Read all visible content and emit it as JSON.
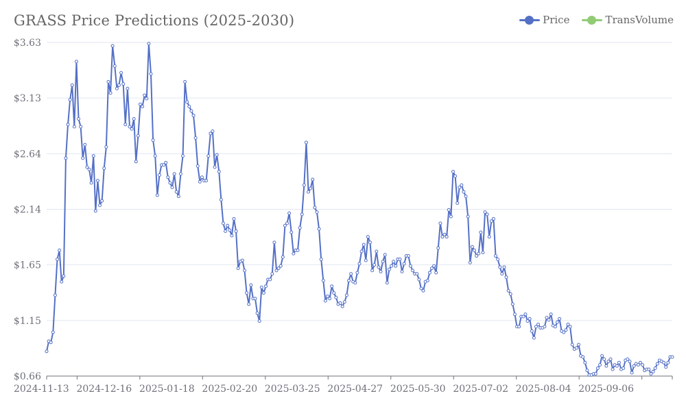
{
  "chart_data": {
    "type": "line",
    "title": "GRASS Price Predictions (2025-2030)",
    "xlabel": "",
    "ylabel": "",
    "ylim": [
      0.66,
      3.63
    ],
    "y_ticks": [
      "$0.66",
      "$1.15",
      "$1.65",
      "$2.14",
      "$2.64",
      "$3.13",
      "$3.63"
    ],
    "x_ticks": [
      "2024-11-13",
      "2024-12-16",
      "2025-01-18",
      "2025-02-20",
      "2025-03-25",
      "2025-04-27",
      "2025-05-30",
      "2025-07-02",
      "2025-08-04",
      "2025-09-06"
    ],
    "x_start": "2024-10-28",
    "x_end": "2025-09-22",
    "grid": true,
    "legend_position": "top-right",
    "colors": {
      "price": "#5470c6",
      "transvolume": "#91cc75",
      "axis": "#6e7079",
      "grid": "#e0e6f1"
    },
    "series": [
      {
        "name": "Price",
        "values": [
          0.88,
          0.97,
          0.96,
          1.05,
          1.38,
          1.7,
          1.78,
          1.5,
          1.55,
          2.6,
          2.9,
          3.12,
          3.25,
          2.88,
          3.46,
          2.95,
          2.88,
          2.6,
          2.72,
          2.52,
          2.5,
          2.38,
          2.62,
          2.13,
          2.4,
          2.18,
          2.22,
          2.51,
          2.7,
          3.28,
          3.18,
          3.6,
          3.42,
          3.22,
          3.25,
          3.36,
          3.26,
          2.9,
          3.22,
          2.88,
          2.86,
          2.95,
          2.57,
          2.8,
          3.08,
          3.06,
          3.16,
          3.13,
          3.62,
          3.35,
          2.76,
          2.62,
          2.27,
          2.45,
          2.54,
          2.54,
          2.56,
          2.43,
          2.38,
          2.34,
          2.46,
          2.3,
          2.26,
          2.46,
          2.62,
          3.28,
          3.1,
          3.06,
          3.02,
          2.98,
          2.78,
          2.53,
          2.39,
          2.43,
          2.4,
          2.4,
          2.62,
          2.82,
          2.84,
          2.52,
          2.63,
          2.48,
          2.23,
          2.02,
          1.95,
          2.0,
          1.96,
          1.91,
          2.06,
          1.95,
          1.62,
          1.68,
          1.69,
          1.6,
          1.4,
          1.3,
          1.47,
          1.35,
          1.35,
          1.22,
          1.15,
          1.45,
          1.4,
          1.46,
          1.52,
          1.52,
          1.57,
          1.85,
          1.6,
          1.62,
          1.64,
          1.72,
          2.0,
          2.02,
          2.11,
          1.94,
          1.75,
          1.78,
          1.78,
          1.98,
          2.1,
          2.36,
          2.74,
          2.3,
          2.33,
          2.41,
          2.16,
          2.12,
          1.97,
          1.7,
          1.51,
          1.33,
          1.37,
          1.35,
          1.46,
          1.4,
          1.36,
          1.3,
          1.31,
          1.28,
          1.32,
          1.38,
          1.51,
          1.57,
          1.5,
          1.49,
          1.58,
          1.66,
          1.77,
          1.83,
          1.69,
          1.9,
          1.85,
          1.6,
          1.65,
          1.77,
          1.63,
          1.59,
          1.68,
          1.74,
          1.49,
          1.61,
          1.64,
          1.68,
          1.64,
          1.7,
          1.7,
          1.59,
          1.66,
          1.73,
          1.73,
          1.64,
          1.6,
          1.57,
          1.57,
          1.52,
          1.44,
          1.42,
          1.5,
          1.51,
          1.58,
          1.62,
          1.64,
          1.58,
          1.8,
          2.02,
          1.9,
          1.92,
          1.9,
          2.14,
          2.08,
          2.48,
          2.44,
          2.2,
          2.34,
          2.36,
          2.3,
          2.26,
          2.08,
          1.67,
          1.81,
          1.78,
          1.73,
          1.75,
          1.94,
          1.76,
          2.12,
          2.1,
          1.9,
          2.04,
          2.06,
          1.73,
          1.7,
          1.63,
          1.57,
          1.63,
          1.54,
          1.42,
          1.39,
          1.3,
          1.21,
          1.1,
          1.1,
          1.19,
          1.19,
          1.21,
          1.15,
          1.17,
          1.06,
          1.0,
          1.1,
          1.12,
          1.09,
          1.09,
          1.1,
          1.18,
          1.16,
          1.21,
          1.11,
          1.1,
          1.14,
          1.17,
          1.06,
          1.05,
          1.07,
          1.12,
          1.1,
          0.94,
          0.9,
          0.91,
          0.94,
          0.84,
          0.83,
          0.78,
          0.71,
          0.67,
          0.67,
          0.68,
          0.68,
          0.73,
          0.76,
          0.84,
          0.81,
          0.75,
          0.79,
          0.81,
          0.72,
          0.76,
          0.75,
          0.78,
          0.72,
          0.73,
          0.8,
          0.81,
          0.79,
          0.69,
          0.75,
          0.77,
          0.76,
          0.78,
          0.76,
          0.71,
          0.72,
          0.72,
          0.68,
          0.7,
          0.73,
          0.77,
          0.8,
          0.79,
          0.78,
          0.74,
          0.78,
          0.83,
          0.83
        ]
      },
      {
        "name": "TransVolume",
        "values": []
      }
    ]
  }
}
